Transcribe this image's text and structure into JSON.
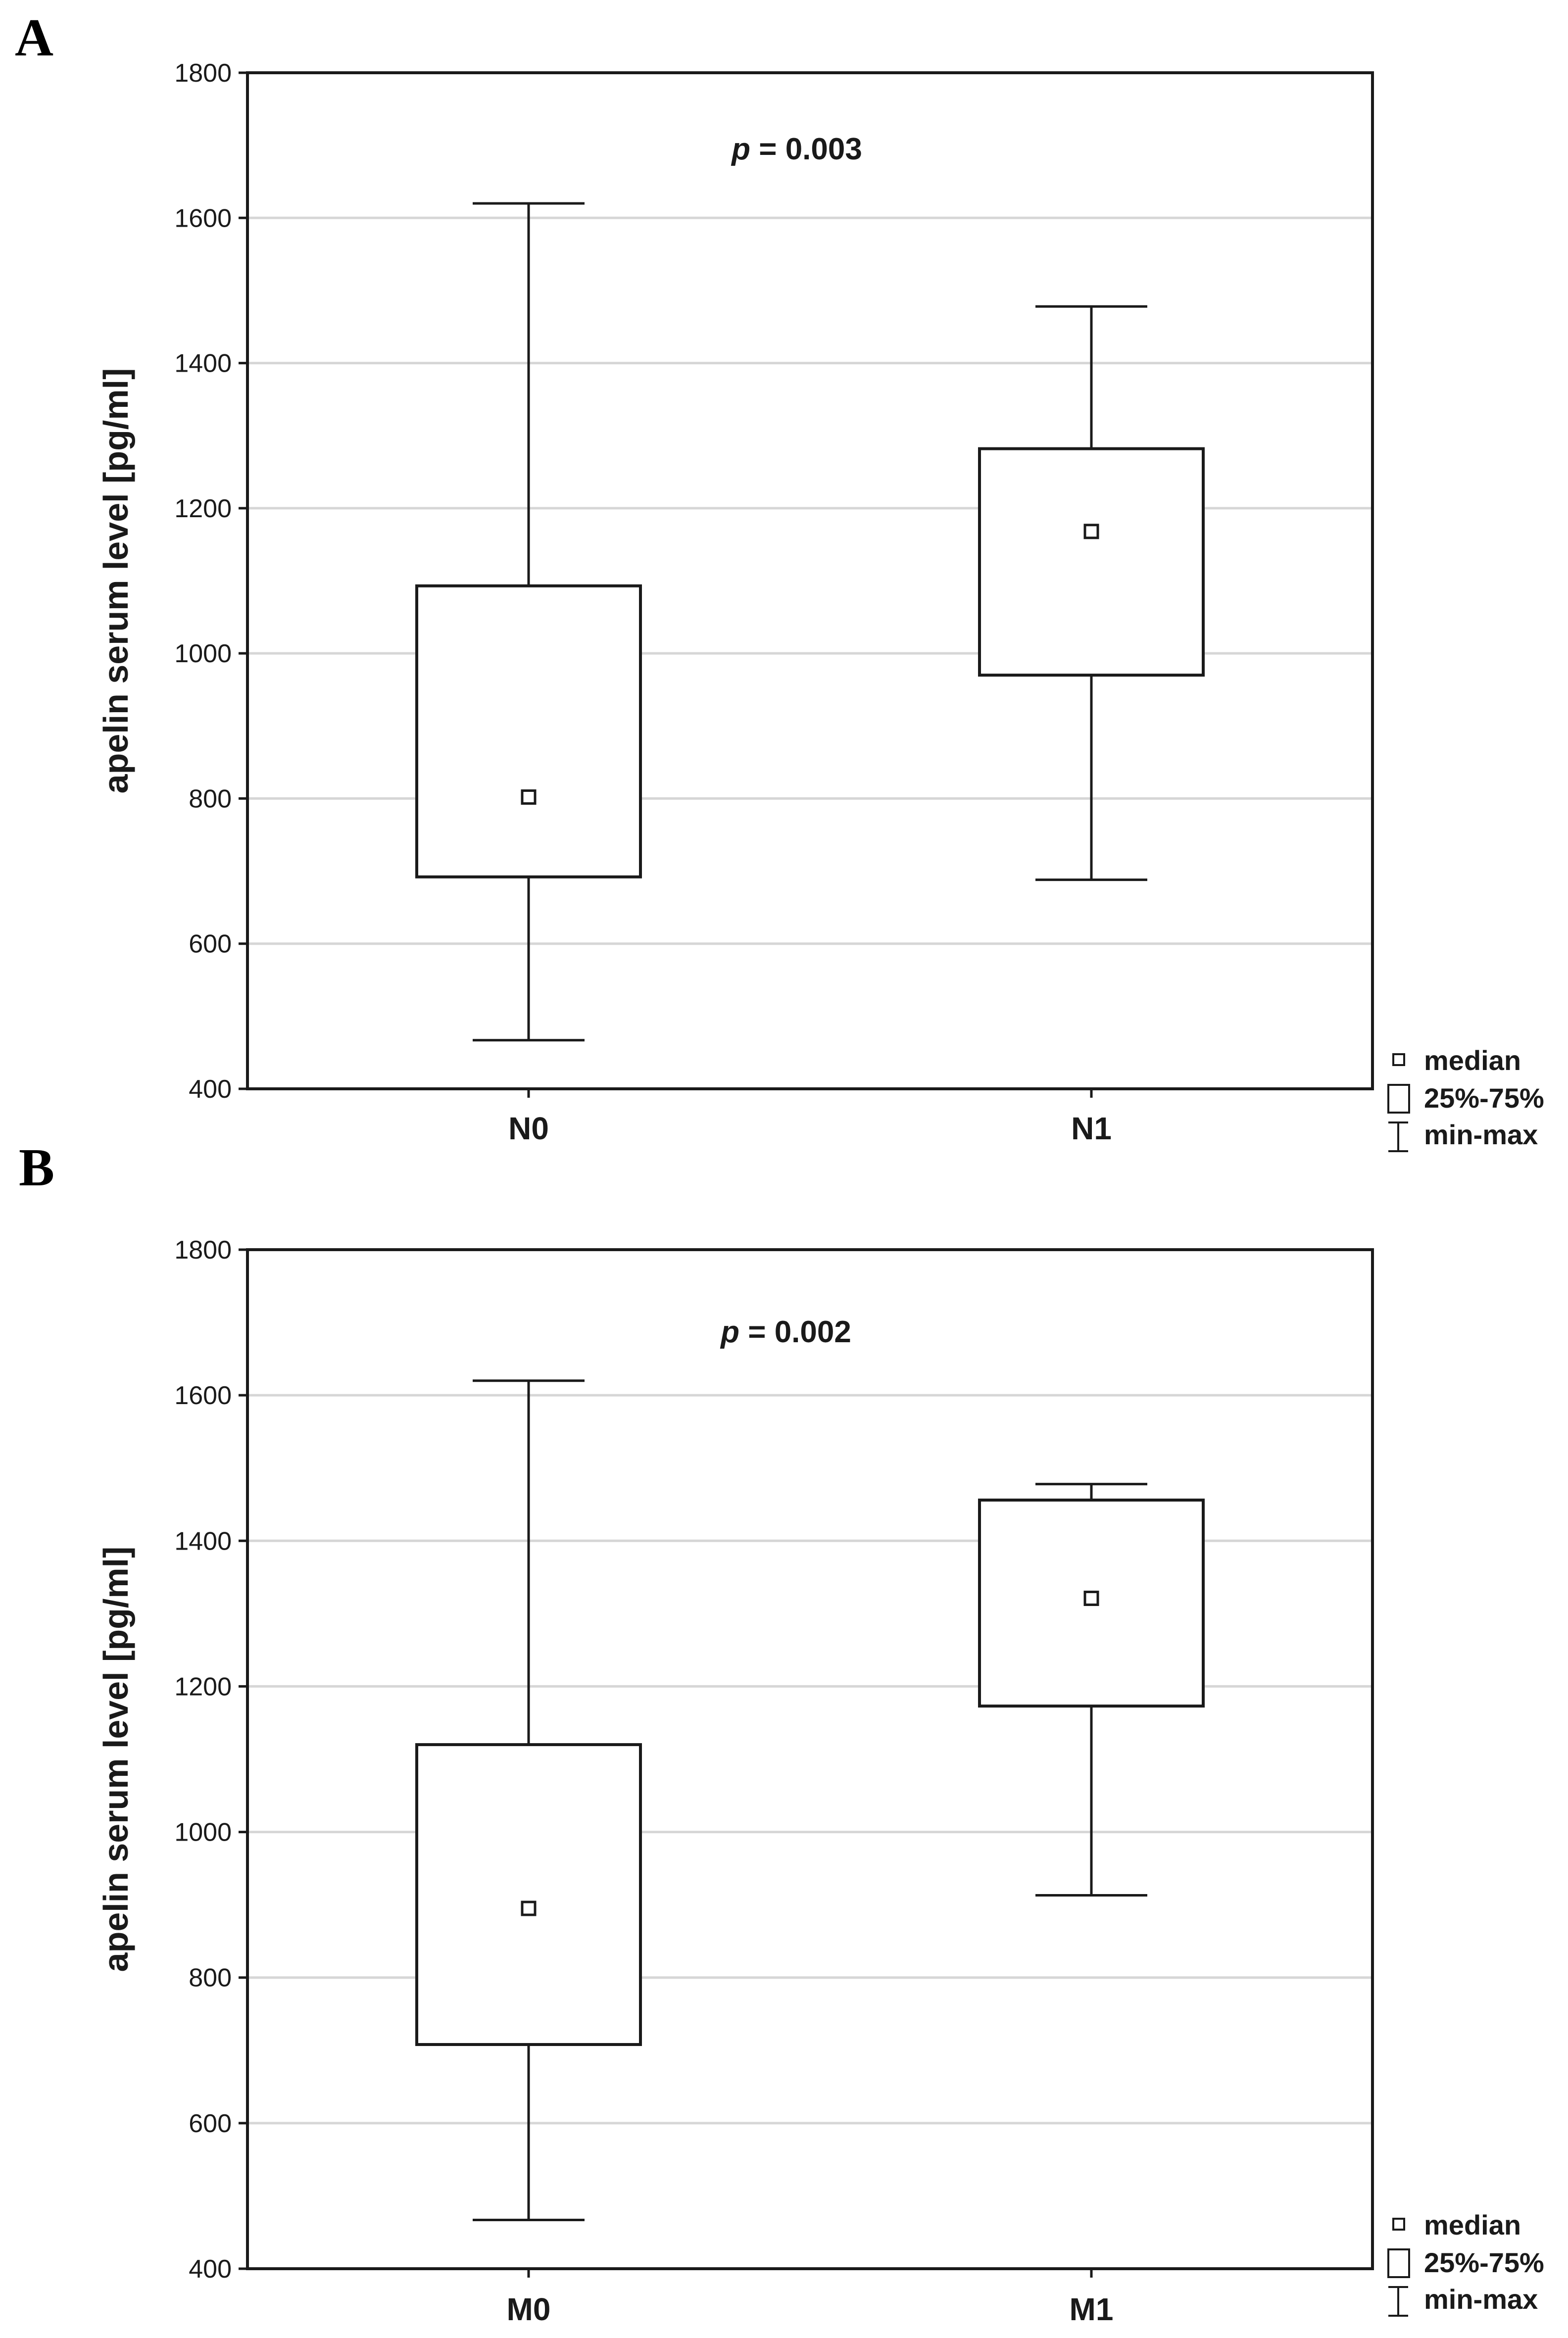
{
  "chart_data": [
    {
      "type": "box",
      "panel": "A",
      "ylabel": "apelin serum level [pg/ml]",
      "xlabel": "",
      "ylim": [
        400,
        1800
      ],
      "yticks": [
        400,
        600,
        800,
        1000,
        1200,
        1400,
        1600,
        1800
      ],
      "grid": true,
      "annotation": {
        "p_symbol": "p",
        "p_rest": " = 0.003"
      },
      "categories": [
        "N0",
        "N1"
      ],
      "boxes": [
        {
          "name": "N0",
          "min": 467,
          "q1": 692,
          "median": 802,
          "q3": 1093,
          "max": 1620
        },
        {
          "name": "N1",
          "min": 688,
          "q1": 970,
          "median": 1168,
          "q3": 1282,
          "max": 1478
        }
      ],
      "legend": {
        "position": "bottom-right",
        "median": "median",
        "box": "25%-75%",
        "whisker": "min-max"
      }
    },
    {
      "type": "box",
      "panel": "B",
      "ylabel": "apelin serum level [pg/ml]",
      "xlabel": "",
      "ylim": [
        400,
        1800
      ],
      "yticks": [
        400,
        600,
        800,
        1000,
        1200,
        1400,
        1600,
        1800
      ],
      "grid": true,
      "annotation": {
        "p_symbol": "p",
        "p_rest": " = 0.002"
      },
      "categories": [
        "M0",
        "M1"
      ],
      "boxes": [
        {
          "name": "M0",
          "min": 467,
          "q1": 708,
          "median": 895,
          "q3": 1120,
          "max": 1620
        },
        {
          "name": "M1",
          "min": 913,
          "q1": 1173,
          "median": 1321,
          "q3": 1456,
          "max": 1478
        }
      ],
      "legend": {
        "position": "bottom-right",
        "median": "median",
        "box": "25%-75%",
        "whisker": "min-max"
      }
    }
  ]
}
